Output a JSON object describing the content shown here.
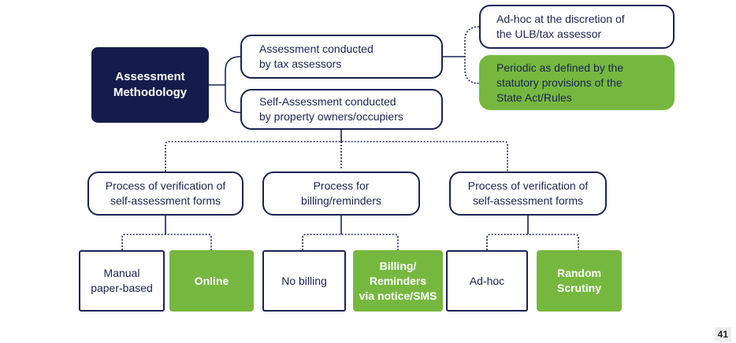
{
  "root": {
    "label": "Assessment\nMethodology"
  },
  "level1": {
    "assessors": "Assessment conducted\nby tax assessors",
    "self": "Self-Assessment conducted\nby property owners/occupiers"
  },
  "assessor_options": {
    "adhoc": "Ad-hoc at the discretion of\nthe ULB/tax assessor",
    "periodic": "Periodic as defined by the\nstatutory provisions of the\nState Act/Rules"
  },
  "processes": [
    {
      "label": "Process of verification of\nself-assessment forms",
      "options": [
        "Manual\npaper-based",
        "Online"
      ]
    },
    {
      "label": "Process for\nbilling/reminders",
      "options": [
        "No billing",
        "Billing/\nReminders\nvia notice/SMS"
      ]
    },
    {
      "label": "Process of verification of\nself-assessment forms",
      "options": [
        "Ad-hoc",
        "Random\nScrutiny"
      ]
    }
  ],
  "page_number": "41",
  "colors": {
    "navy": "#141c4d",
    "green": "#76b83f",
    "outline": "#1b2352"
  }
}
